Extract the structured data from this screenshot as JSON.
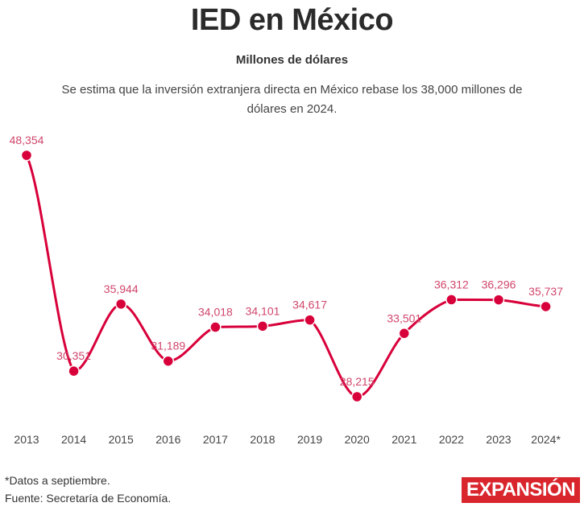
{
  "header": {
    "title": "IED en México",
    "subtitle": "Millones de dólares",
    "description": "Se estima que la inversión extranjera directa en México rebase los 38,000 millones de dólares en 2024."
  },
  "footer": {
    "note": "*Datos a septiembre.",
    "source": "Fuente: Secretaría de Economía.",
    "logo": "EXPANSIÓN"
  },
  "colors": {
    "series": "#d8003a",
    "label": "#d0466b",
    "logo_bg": "#d9252c",
    "axis_text": "#444444"
  },
  "chart_data": {
    "type": "line",
    "title": "IED en México",
    "subtitle": "Millones de dólares",
    "xlabel": "",
    "ylabel": "",
    "categories": [
      "2013",
      "2014",
      "2015",
      "2016",
      "2017",
      "2018",
      "2019",
      "2020",
      "2021",
      "2022",
      "2023",
      "2024*"
    ],
    "series": [
      {
        "name": "IED",
        "values": [
          48354,
          30351,
          35944,
          31189,
          34018,
          34101,
          34617,
          28215,
          33501,
          36312,
          36296,
          35737
        ],
        "labels": [
          "48,354",
          "30,351",
          "35,944",
          "31,189",
          "34,018",
          "34,101",
          "34,617",
          "28,215",
          "33,501",
          "36,312",
          "36,296",
          "35,737"
        ]
      }
    ],
    "ylim": [
      28215,
      48354
    ],
    "grid": false,
    "legend": "none",
    "smooth": true
  }
}
